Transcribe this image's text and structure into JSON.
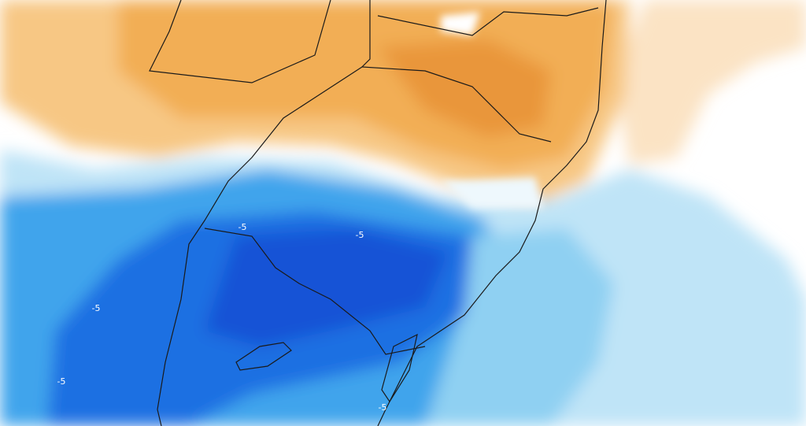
{
  "contour_labels": [
    "-5",
    "-5",
    "-5",
    "-5",
    "-5"
  ]
}
